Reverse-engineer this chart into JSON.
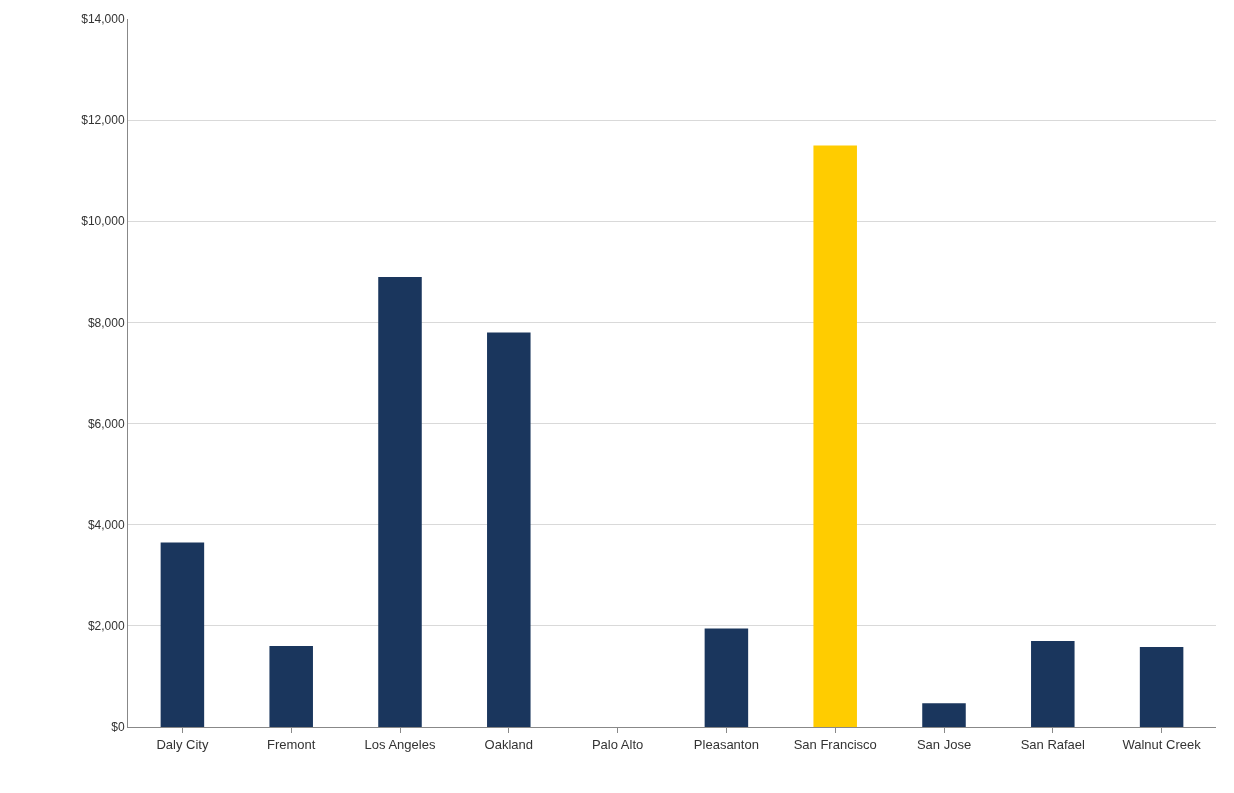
{
  "chart_data": {
    "type": "bar",
    "categories": [
      "Daly City",
      "Fremont",
      "Los Angeles",
      "Oakland",
      "Palo Alto",
      "Pleasanton",
      "San Francisco",
      "San Jose",
      "San Rafael",
      "Walnut Creek"
    ],
    "values": [
      3650,
      1600,
      8900,
      7800,
      0,
      1950,
      11500,
      470,
      1700,
      1580
    ],
    "colors": [
      "#1a365d",
      "#1a365d",
      "#1a365d",
      "#1a365d",
      "#1a365d",
      "#1a365d",
      "#ffcc00",
      "#1a365d",
      "#1a365d",
      "#1a365d"
    ],
    "ylim": [
      0,
      14000
    ],
    "yticks": [
      {
        "value": 0,
        "label": "$0"
      },
      {
        "value": 2000,
        "label": "$2,000"
      },
      {
        "value": 4000,
        "label": "$4,000"
      },
      {
        "value": 6000,
        "label": "$6,000"
      },
      {
        "value": 8000,
        "label": "$8,000"
      },
      {
        "value": 10000,
        "label": "$10,000"
      },
      {
        "value": 12000,
        "label": "$12,000"
      },
      {
        "value": 14000,
        "label": "$14,000"
      }
    ],
    "grid": "y"
  }
}
